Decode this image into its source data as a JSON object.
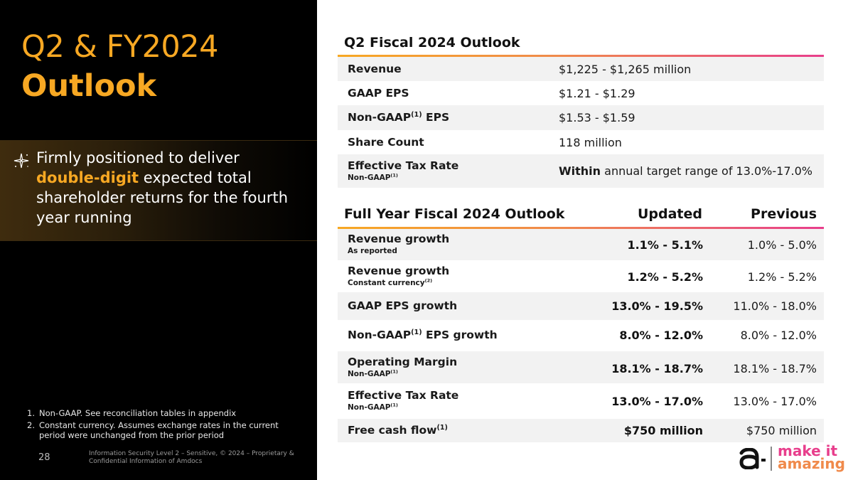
{
  "slide": {
    "title_line1": "Q2 & FY2024",
    "title_line2": "Outlook",
    "highlight": {
      "before": "Firmly positioned to deliver ",
      "accent": "double-digit",
      "after": " expected total shareholder returns for the fourth year running"
    },
    "footnotes": [
      {
        "num": "1.",
        "text": "Non-GAAP. See reconciliation tables in appendix"
      },
      {
        "num": "2.",
        "text": "Constant currency. Assumes exchange rates in the current period were unchanged from the prior period"
      }
    ],
    "page_number": "28",
    "legal": "Information Security Level 2 – Sensitive, © 2024 – Proprietary & Confidential Information of Amdocs"
  },
  "q2_table": {
    "title": "Q2 Fiscal 2024 Outlook",
    "rows": [
      {
        "label": "Revenue",
        "value": "$1,225 - $1,265 million"
      },
      {
        "label": "GAAP EPS",
        "value": "$1.21 - $1.29"
      },
      {
        "label_pre": "Non-GAAP",
        "label_sup": "(1)",
        "label_post": " EPS",
        "value": "$1.53 - $1.59"
      },
      {
        "label": "Share Count",
        "value": "118 million"
      },
      {
        "label": "Effective Tax Rate",
        "sub": "Non-GAAP",
        "sub_sup": "(1)",
        "value_bold": "Within",
        "value_rest": " annual target range of 13.0%-17.0%"
      }
    ]
  },
  "fy_table": {
    "title": "Full Year Fiscal 2024 Outlook",
    "col_updated": "Updated",
    "col_previous": "Previous",
    "rows": [
      {
        "label": "Revenue growth",
        "sub": "As reported",
        "updated": "1.1% - 5.1%",
        "previous": "1.0% - 5.0%"
      },
      {
        "label": "Revenue growth",
        "sub": "Constant currency",
        "sub_sup": "(2)",
        "updated": "1.2% - 5.2%",
        "previous": "1.2% - 5.2%"
      },
      {
        "label": "GAAP EPS growth",
        "updated": "13.0% - 19.5%",
        "previous": "11.0% - 18.0%"
      },
      {
        "label_pre": "Non-GAAP",
        "label_sup": "(1)",
        "label_post": " EPS growth",
        "updated": "8.0% - 12.0%",
        "previous": "8.0% - 12.0%"
      },
      {
        "label": "Operating Margin",
        "sub": "Non-GAAP",
        "sub_sup": "(1)",
        "updated": "18.1% - 18.7%",
        "previous": "18.1% - 18.7%"
      },
      {
        "label": "Effective Tax Rate",
        "sub": "Non-GAAP",
        "sub_sup": "(1)",
        "updated": "13.0% - 17.0%",
        "previous": "13.0% - 17.0%"
      },
      {
        "label_pre": "Free cash flow",
        "label_sup": "(1)",
        "updated": "$750 million",
        "previous": "$750 million"
      }
    ]
  },
  "logo": {
    "line1": "make it",
    "line2": "amazing",
    "colors": {
      "gold": "#f7a823",
      "orange": "#f08a4b",
      "magenta": "#e83e8c"
    }
  }
}
